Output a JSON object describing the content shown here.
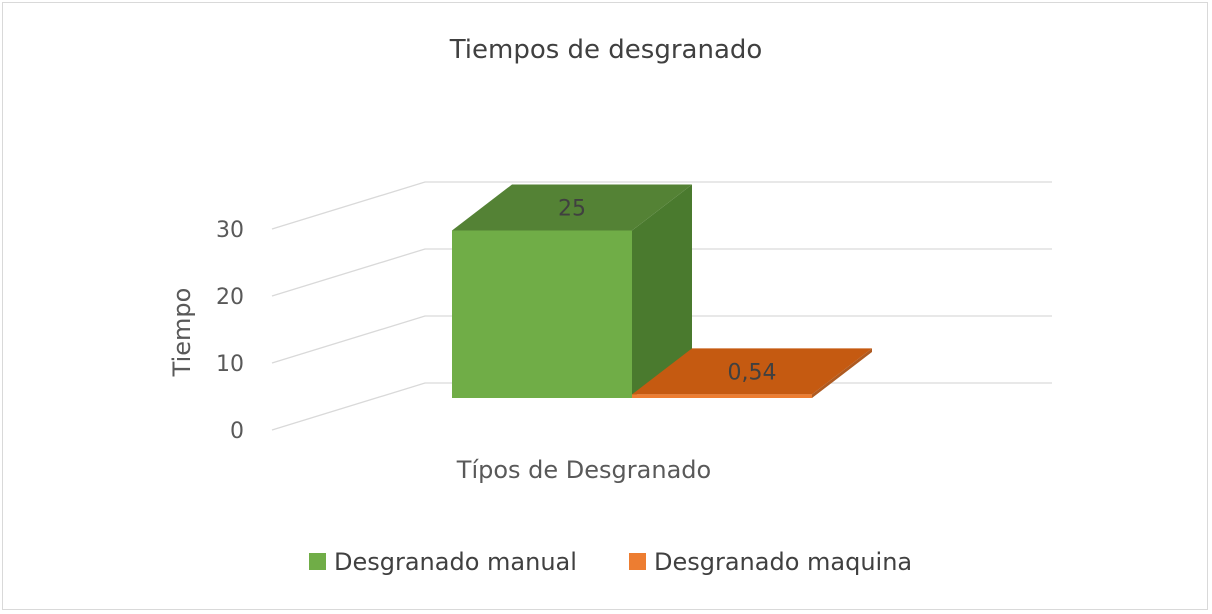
{
  "chart_data": {
    "type": "bar",
    "title": "Tiempos de desgranado",
    "xlabel": "Típos de Desgranado",
    "ylabel": "Tiempo",
    "ylim": [
      0,
      30
    ],
    "yticks": [
      0,
      10,
      20,
      30
    ],
    "grid": true,
    "style": "3d-clustered-column",
    "legend_position": "bottom",
    "categories": [
      ""
    ],
    "series": [
      {
        "name": "Desgranado manual",
        "values": [
          25
        ],
        "data_label": "25",
        "color": "#70ad47",
        "side_color": "#4a7a2e",
        "top_color": "#548235"
      },
      {
        "name": "Desgranado maquina",
        "values": [
          0.54
        ],
        "data_label": "0,54",
        "color": "#ed7d31",
        "side_color": "#ae5a21",
        "top_color": "#c55a11"
      }
    ]
  }
}
